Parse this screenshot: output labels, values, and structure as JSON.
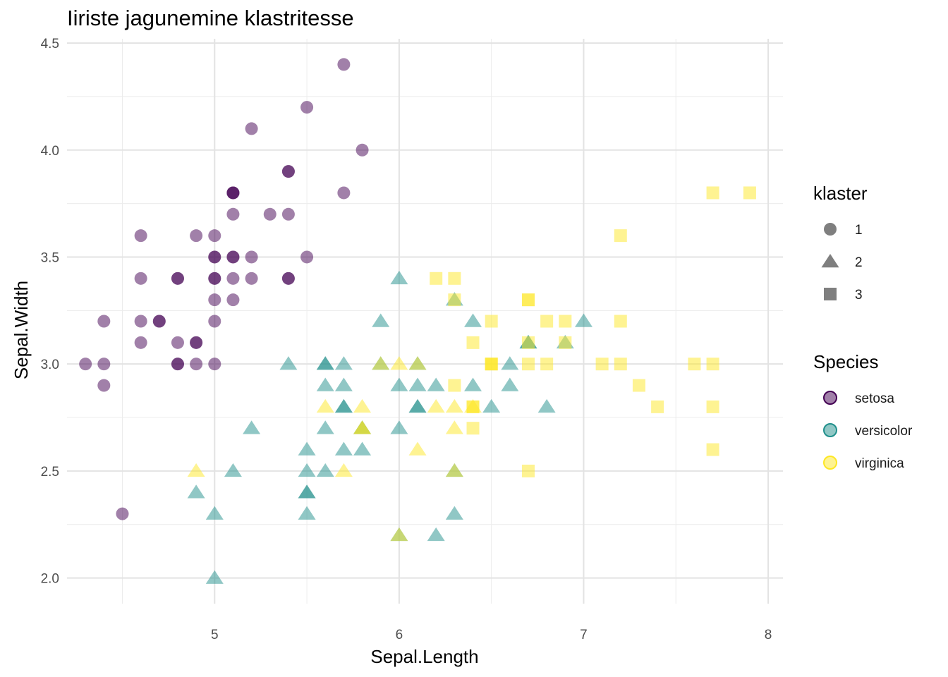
{
  "chart_data": {
    "type": "scatter",
    "title": "Iiriste jagunemine klastritesse",
    "xlabel": "Sepal.Length",
    "ylabel": "Sepal.Width",
    "xlim": [
      4.2,
      8.08
    ],
    "ylim": [
      1.88,
      4.52
    ],
    "x_ticks": [
      5,
      6,
      7,
      8
    ],
    "y_ticks": [
      2.0,
      2.5,
      3.0,
      3.5,
      4.0,
      4.5
    ],
    "grid": true,
    "legend_position": "right",
    "shape_legend": {
      "title": "klaster",
      "entries": [
        {
          "label": "1",
          "shape": "circle"
        },
        {
          "label": "2",
          "shape": "triangle"
        },
        {
          "label": "3",
          "shape": "square"
        }
      ]
    },
    "color_legend": {
      "title": "Species",
      "entries": [
        {
          "label": "setosa",
          "color": "#440154"
        },
        {
          "label": "versicolor",
          "color": "#21908C"
        },
        {
          "label": "virginica",
          "color": "#FDE725"
        }
      ]
    },
    "series": [
      {
        "species": "setosa",
        "cluster": "1",
        "points": [
          [
            5.1,
            3.5
          ],
          [
            4.9,
            3.0
          ],
          [
            4.7,
            3.2
          ],
          [
            4.6,
            3.1
          ],
          [
            5.0,
            3.6
          ],
          [
            5.4,
            3.9
          ],
          [
            4.6,
            3.4
          ],
          [
            5.0,
            3.4
          ],
          [
            4.4,
            2.9
          ],
          [
            4.9,
            3.1
          ],
          [
            5.4,
            3.7
          ],
          [
            4.8,
            3.4
          ],
          [
            4.8,
            3.0
          ],
          [
            4.3,
            3.0
          ],
          [
            5.8,
            4.0
          ],
          [
            5.7,
            4.4
          ],
          [
            5.4,
            3.9
          ],
          [
            5.1,
            3.5
          ],
          [
            5.7,
            3.8
          ],
          [
            5.1,
            3.8
          ],
          [
            5.4,
            3.4
          ],
          [
            5.1,
            3.7
          ],
          [
            4.6,
            3.6
          ],
          [
            5.1,
            3.3
          ],
          [
            4.8,
            3.4
          ],
          [
            5.0,
            3.0
          ],
          [
            5.0,
            3.4
          ],
          [
            5.2,
            3.5
          ],
          [
            5.2,
            3.4
          ],
          [
            4.7,
            3.2
          ],
          [
            4.8,
            3.1
          ],
          [
            5.4,
            3.4
          ],
          [
            5.2,
            4.1
          ],
          [
            5.5,
            4.2
          ],
          [
            4.9,
            3.1
          ],
          [
            5.0,
            3.2
          ],
          [
            5.5,
            3.5
          ],
          [
            4.9,
            3.6
          ],
          [
            4.4,
            3.0
          ],
          [
            5.1,
            3.4
          ],
          [
            5.0,
            3.5
          ],
          [
            4.5,
            2.3
          ],
          [
            4.4,
            3.2
          ],
          [
            5.0,
            3.5
          ],
          [
            5.1,
            3.8
          ],
          [
            4.8,
            3.0
          ],
          [
            5.1,
            3.8
          ],
          [
            4.6,
            3.2
          ],
          [
            5.3,
            3.7
          ],
          [
            5.0,
            3.3
          ]
        ]
      },
      {
        "species": "versicolor",
        "cluster": "2",
        "points": [
          [
            5.5,
            2.3
          ],
          [
            5.7,
            2.8
          ],
          [
            4.9,
            2.4
          ],
          [
            6.6,
            2.9
          ],
          [
            5.2,
            2.7
          ],
          [
            5.0,
            2.0
          ],
          [
            5.9,
            3.0
          ],
          [
            6.0,
            2.2
          ],
          [
            6.1,
            2.9
          ],
          [
            5.6,
            2.9
          ],
          [
            6.7,
            3.1
          ],
          [
            5.6,
            3.0
          ],
          [
            5.8,
            2.7
          ],
          [
            6.2,
            2.2
          ],
          [
            5.6,
            2.5
          ],
          [
            5.9,
            3.2
          ],
          [
            6.1,
            2.8
          ],
          [
            6.3,
            2.5
          ],
          [
            6.1,
            2.8
          ],
          [
            6.4,
            2.9
          ],
          [
            6.0,
            2.9
          ],
          [
            5.7,
            2.6
          ],
          [
            5.5,
            2.4
          ],
          [
            5.5,
            2.4
          ],
          [
            5.8,
            2.7
          ],
          [
            6.0,
            2.7
          ],
          [
            5.4,
            3.0
          ],
          [
            6.0,
            3.4
          ],
          [
            6.7,
            3.1
          ],
          [
            6.3,
            2.3
          ],
          [
            5.6,
            3.0
          ],
          [
            5.5,
            2.5
          ],
          [
            5.5,
            2.6
          ],
          [
            6.1,
            3.0
          ],
          [
            5.8,
            2.6
          ],
          [
            5.0,
            2.3
          ],
          [
            5.6,
            2.7
          ],
          [
            5.7,
            3.0
          ],
          [
            5.7,
            2.9
          ],
          [
            6.2,
            2.9
          ],
          [
            5.1,
            2.5
          ],
          [
            5.7,
            2.8
          ],
          [
            6.5,
            2.8
          ],
          [
            6.3,
            3.3
          ],
          [
            6.8,
            2.8
          ],
          [
            6.6,
            3.0
          ],
          [
            7.0,
            3.2
          ],
          [
            6.9,
            3.1
          ],
          [
            6.4,
            3.2
          ]
        ]
      },
      {
        "species": "virginica",
        "cluster": "2",
        "points": [
          [
            5.8,
            2.7
          ],
          [
            4.9,
            2.5
          ],
          [
            5.7,
            2.5
          ],
          [
            5.8,
            2.8
          ],
          [
            6.0,
            2.2
          ],
          [
            5.6,
            2.8
          ],
          [
            6.3,
            2.7
          ],
          [
            6.2,
            2.8
          ],
          [
            6.1,
            3.0
          ],
          [
            6.4,
            2.8
          ],
          [
            6.3,
            2.8
          ],
          [
            6.1,
            2.6
          ],
          [
            6.0,
            3.0
          ],
          [
            5.8,
            2.7
          ],
          [
            6.3,
            2.5
          ],
          [
            5.9,
            3.0
          ]
        ]
      },
      {
        "species": "virginica",
        "cluster": "3",
        "points": [
          [
            6.3,
            3.3
          ],
          [
            7.1,
            3.0
          ],
          [
            6.3,
            2.9
          ],
          [
            6.5,
            3.0
          ],
          [
            7.6,
            3.0
          ],
          [
            7.3,
            2.9
          ],
          [
            6.7,
            2.5
          ],
          [
            7.2,
            3.6
          ],
          [
            6.5,
            3.2
          ],
          [
            6.4,
            2.7
          ],
          [
            6.8,
            3.0
          ],
          [
            6.5,
            3.0
          ],
          [
            7.7,
            3.8
          ],
          [
            7.7,
            2.6
          ],
          [
            6.9,
            3.2
          ],
          [
            7.7,
            2.8
          ],
          [
            6.7,
            3.3
          ],
          [
            7.2,
            3.2
          ],
          [
            6.4,
            2.8
          ],
          [
            7.2,
            3.0
          ],
          [
            7.4,
            2.8
          ],
          [
            7.9,
            3.8
          ],
          [
            6.4,
            2.8
          ],
          [
            7.7,
            3.0
          ],
          [
            6.3,
            3.4
          ],
          [
            6.4,
            3.1
          ],
          [
            6.9,
            3.1
          ],
          [
            6.7,
            3.1
          ],
          [
            6.8,
            3.2
          ],
          [
            6.7,
            3.3
          ],
          [
            6.7,
            3.0
          ],
          [
            6.5,
            3.0
          ],
          [
            6.2,
            3.4
          ]
        ]
      }
    ]
  }
}
